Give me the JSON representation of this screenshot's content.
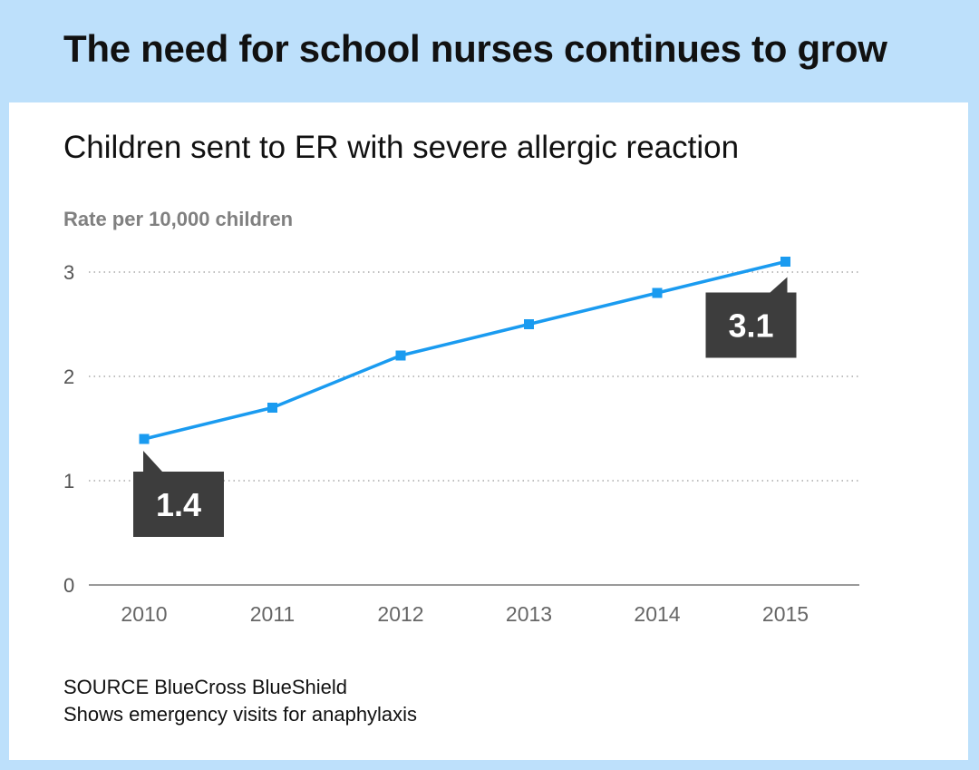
{
  "headline": "The need for school nurses continues to grow",
  "chart_data": {
    "type": "line",
    "title": "Children sent to ER with severe allergic reaction",
    "ylabel": "Rate per 10,000 children",
    "xlabel": "",
    "categories": [
      "2010",
      "2011",
      "2012",
      "2013",
      "2014",
      "2015"
    ],
    "series": [
      {
        "values": [
          1.4,
          1.7,
          2.2,
          2.5,
          2.8,
          3.1
        ],
        "color": "#1a9bf0"
      }
    ],
    "ylim": [
      0,
      3
    ],
    "yticks": [
      "0",
      "1",
      "2",
      "3"
    ],
    "grid": "dotted horizontal",
    "callouts": [
      {
        "label": "1.4",
        "category": "2010",
        "placement": "below"
      },
      {
        "label": "3.1",
        "category": "2015",
        "placement": "below-left"
      }
    ]
  },
  "source": "SOURCE BlueCross BlueShield",
  "note": "Shows emergency visits for anaphylaxis"
}
